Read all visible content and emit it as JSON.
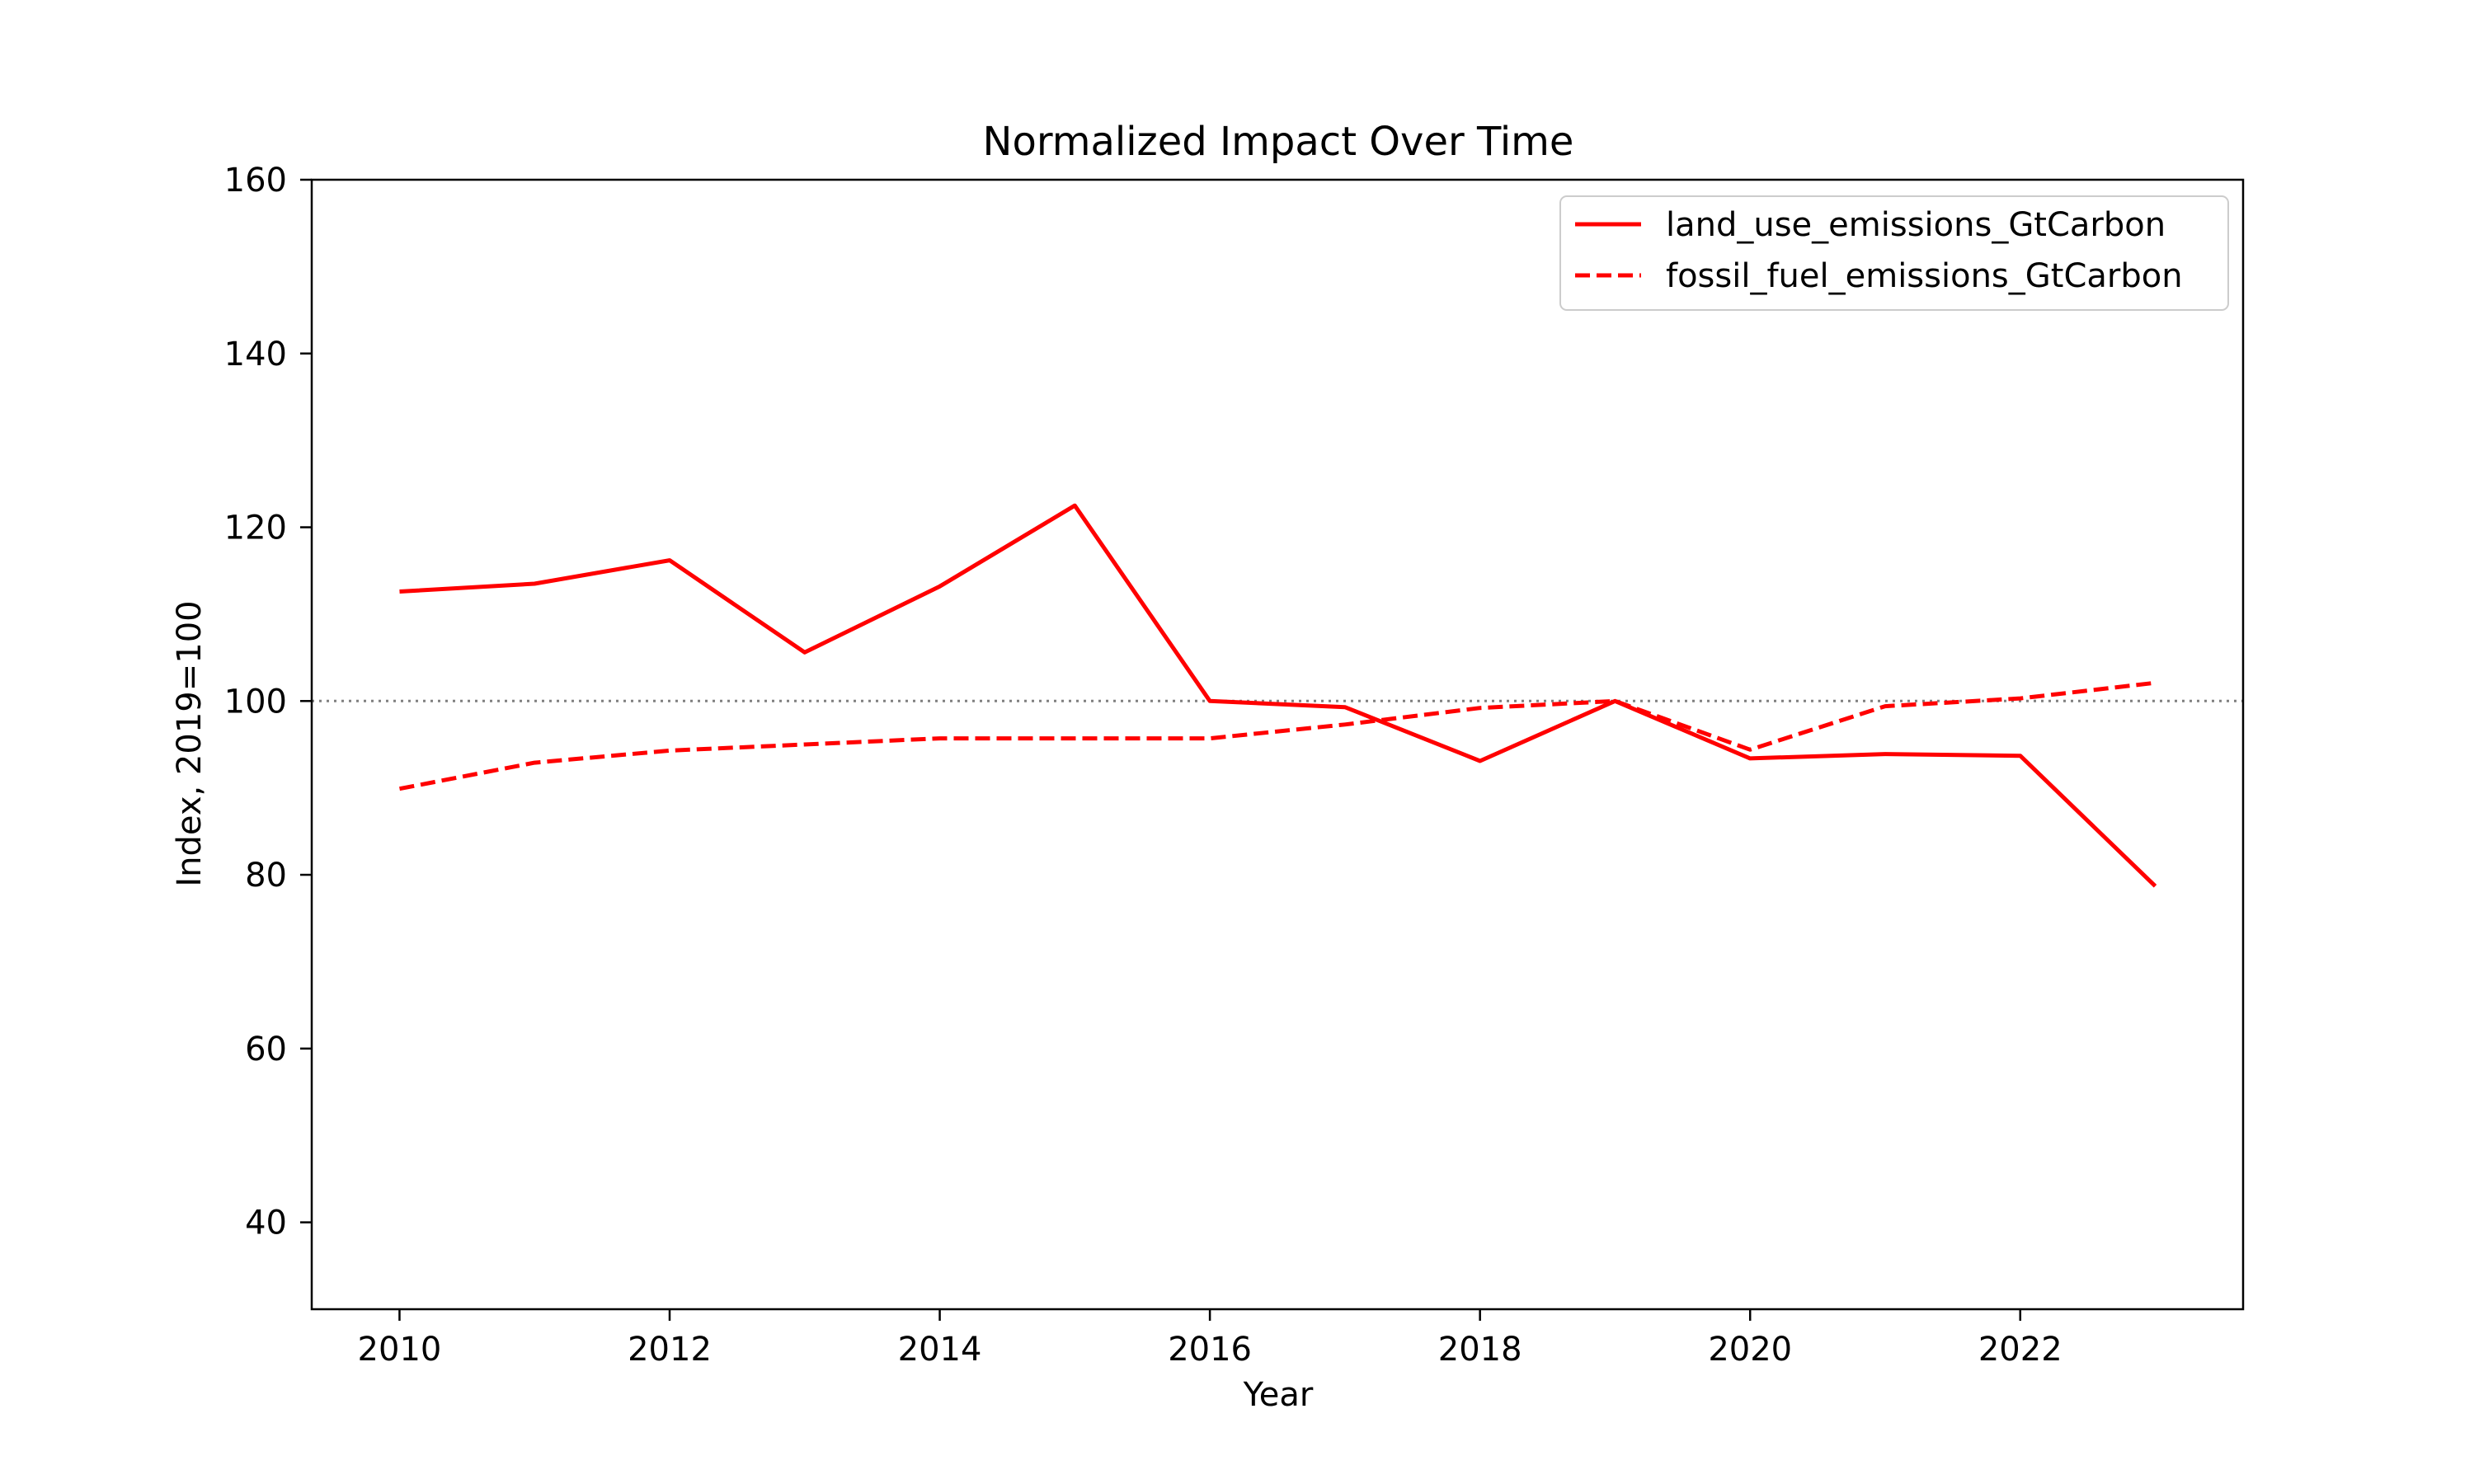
{
  "chart_data": {
    "type": "line",
    "title": "Normalized Impact Over Time",
    "xlabel": "Year",
    "ylabel": "Index, 2019=100",
    "xlim": [
      2009.35,
      2023.65
    ],
    "ylim": [
      30,
      160
    ],
    "x_ticks": [
      2010,
      2012,
      2014,
      2016,
      2018,
      2020,
      2022
    ],
    "y_ticks": [
      40,
      60,
      80,
      100,
      120,
      140,
      160
    ],
    "grid": false,
    "legend_position": "top-right",
    "reference_line": {
      "y": 100,
      "style": "dotted",
      "color": "#808080"
    },
    "x": [
      2010,
      2011,
      2012,
      2013,
      2014,
      2015,
      2016,
      2017,
      2018,
      2019,
      2020,
      2021,
      2022,
      2023
    ],
    "series": [
      {
        "name": "land_use_emissions_GtCarbon",
        "color": "#ff0000",
        "style": "solid",
        "values": [
          112.6,
          113.5,
          116.2,
          105.6,
          113.2,
          122.5,
          100.0,
          99.3,
          93.1,
          100.0,
          93.4,
          93.9,
          93.7,
          78.7
        ]
      },
      {
        "name": "fossil_fuel_emissions_GtCarbon",
        "color": "#ff0000",
        "style": "dashed",
        "values": [
          89.9,
          92.9,
          94.3,
          95.0,
          95.7,
          95.7,
          95.7,
          97.3,
          99.2,
          100.0,
          94.4,
          99.4,
          100.3,
          102.1
        ]
      }
    ]
  }
}
